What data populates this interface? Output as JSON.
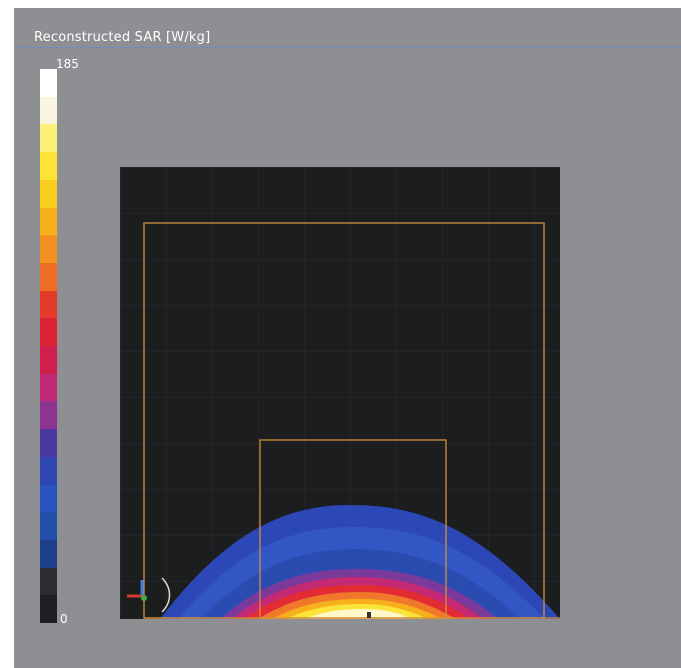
{
  "viewer": {
    "title": "Reconstructed SAR [W/kg]",
    "colorbar": {
      "max_label": "185",
      "min_label": "0",
      "colors": [
        "#ffffff",
        "#f8f6e0",
        "#fbf27a",
        "#fce336",
        "#f9cd1e",
        "#f7b01c",
        "#f39120",
        "#ee6d24",
        "#e43a2a",
        "#dd2331",
        "#cf1f4c",
        "#c12a74",
        "#8e3390",
        "#4a3aa0",
        "#2e46b1",
        "#2a52be",
        "#234ea9",
        "#1d3f8d",
        "#2b2d33",
        "#1e1f22"
      ]
    },
    "colors": {
      "background": "#8d8f92",
      "viewport": "#1c1d1f",
      "outline": "#d2913a"
    },
    "icons": [
      "axis-gizmo-icon",
      "rotation-arc-icon"
    ]
  }
}
